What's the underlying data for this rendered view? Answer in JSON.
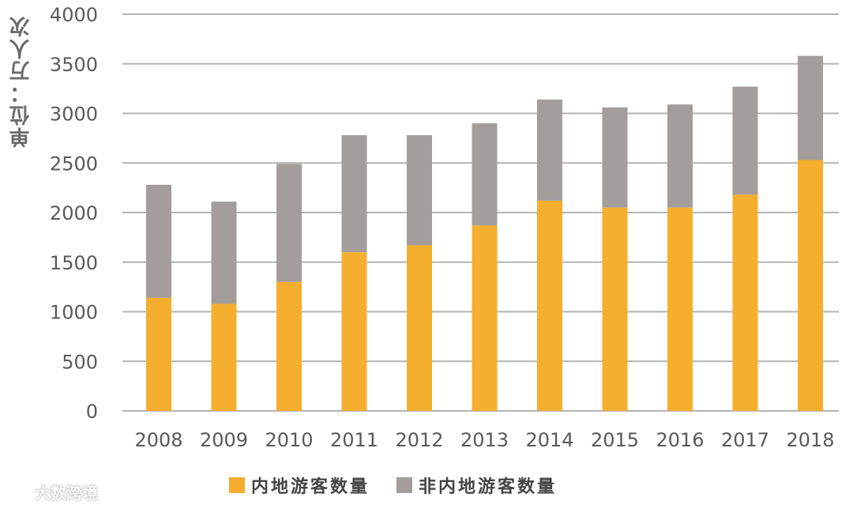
{
  "chart_data": {
    "type": "bar",
    "stacked": true,
    "ylabel": "单位：万人次",
    "categories": [
      "2008",
      "2009",
      "2010",
      "2011",
      "2012",
      "2013",
      "2014",
      "2015",
      "2016",
      "2017",
      "2018"
    ],
    "series": [
      {
        "name": "内地游客数量",
        "color": "#f5ae2e",
        "values": [
          1140,
          1080,
          1300,
          1600,
          1670,
          1870,
          2120,
          2050,
          2050,
          2180,
          2530
        ]
      },
      {
        "name": "非内地游客数量",
        "color": "#a39d9b",
        "values": [
          1140,
          1030,
          1190,
          1180,
          1110,
          1030,
          1020,
          1010,
          1040,
          1090,
          1050
        ]
      }
    ],
    "ylim": [
      0,
      4000
    ],
    "yticks": [
      0,
      500,
      1000,
      1500,
      2000,
      2500,
      3000,
      3500,
      4000
    ],
    "grid": true,
    "legend_position": "bottom"
  },
  "watermark": {
    "text": "大数跨境"
  }
}
